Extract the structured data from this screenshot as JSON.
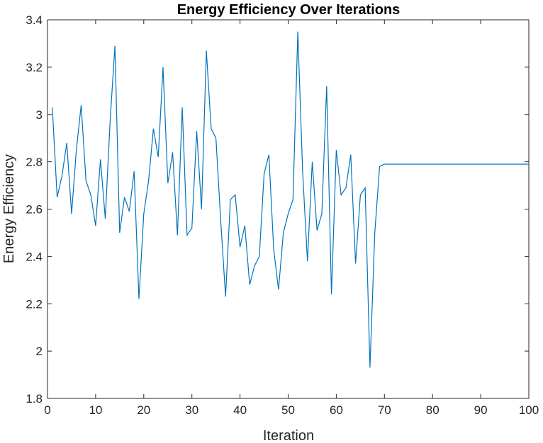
{
  "chart_data": {
    "type": "line",
    "title": "Energy Efficiency Over Iterations",
    "xlabel": "Iteration",
    "ylabel": "Energy Efficiency",
    "xlim": [
      0,
      100
    ],
    "ylim": [
      1.8,
      3.4
    ],
    "xticks": [
      "0",
      "10",
      "20",
      "30",
      "40",
      "50",
      "60",
      "70",
      "80",
      "90",
      "100"
    ],
    "yticks": [
      "1.8",
      "2",
      "2.2",
      "2.4",
      "2.6",
      "2.8",
      "3",
      "3.2",
      "3.4"
    ],
    "grid": false,
    "series": [
      {
        "color": "#0072BD",
        "x": [
          1,
          2,
          3,
          4,
          5,
          6,
          7,
          8,
          9,
          10,
          11,
          12,
          13,
          14,
          15,
          16,
          17,
          18,
          19,
          20,
          21,
          22,
          23,
          24,
          25,
          26,
          27,
          28,
          29,
          30,
          31,
          32,
          33,
          34,
          35,
          36,
          37,
          38,
          39,
          40,
          41,
          42,
          43,
          44,
          45,
          46,
          47,
          48,
          49,
          50,
          51,
          52,
          53,
          54,
          55,
          56,
          57,
          58,
          59,
          60,
          61,
          62,
          63,
          64,
          65,
          66,
          67,
          68,
          69,
          70,
          71,
          72,
          73,
          74,
          75,
          76,
          77,
          78,
          79,
          80,
          81,
          82,
          83,
          84,
          85,
          86,
          87,
          88,
          89,
          90,
          91,
          92,
          93,
          94,
          95,
          96,
          97,
          98,
          99,
          100
        ],
        "y": [
          3.03,
          2.65,
          2.74,
          2.88,
          2.58,
          2.85,
          3.04,
          2.72,
          2.66,
          2.53,
          2.81,
          2.56,
          2.97,
          3.29,
          2.5,
          2.65,
          2.59,
          2.76,
          2.22,
          2.58,
          2.72,
          2.94,
          2.82,
          3.2,
          2.71,
          2.84,
          2.49,
          3.03,
          2.49,
          2.52,
          2.93,
          2.6,
          3.27,
          2.94,
          2.9,
          2.55,
          2.23,
          2.64,
          2.66,
          2.44,
          2.53,
          2.28,
          2.36,
          2.4,
          2.75,
          2.83,
          2.43,
          2.26,
          2.5,
          2.58,
          2.64,
          3.35,
          2.76,
          2.38,
          2.8,
          2.51,
          2.58,
          3.12,
          2.24,
          2.85,
          2.66,
          2.69,
          2.83,
          2.37,
          2.66,
          2.69,
          1.93,
          2.5,
          2.78,
          2.79,
          2.79,
          2.79,
          2.79,
          2.79,
          2.79,
          2.79,
          2.79,
          2.79,
          2.79,
          2.79,
          2.79,
          2.79,
          2.79,
          2.79,
          2.79,
          2.79,
          2.79,
          2.79,
          2.79,
          2.79,
          2.79,
          2.79,
          2.79,
          2.79,
          2.79,
          2.79,
          2.79,
          2.79,
          2.79,
          2.79
        ]
      }
    ]
  }
}
